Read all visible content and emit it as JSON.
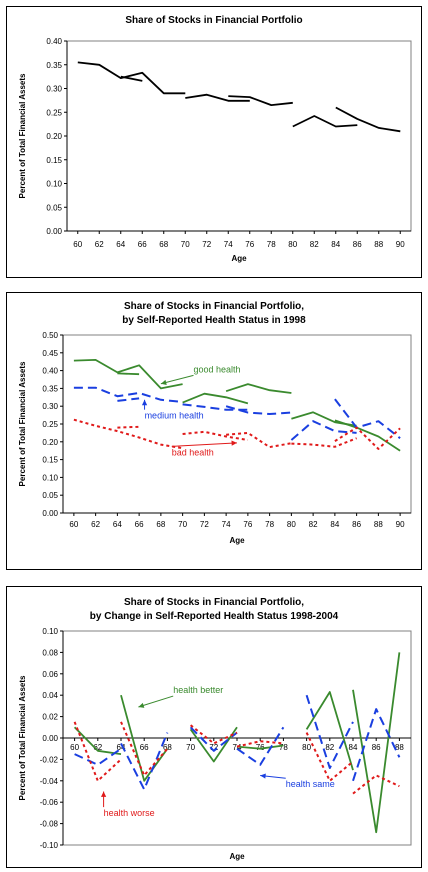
{
  "chart_data": [
    {
      "type": "line",
      "title": "Share of Stocks in Financial Portfolio",
      "subtitle": "",
      "xlabel": "Age",
      "ylabel": "Percent of Total Financial Assets",
      "xlim": [
        59,
        91
      ],
      "ylim": [
        0,
        0.4
      ],
      "xticks": [
        60,
        62,
        64,
        66,
        68,
        70,
        72,
        74,
        76,
        78,
        80,
        82,
        84,
        86,
        88,
        90
      ],
      "ytick_labels": [
        "0.00",
        "0.05",
        "0.10",
        "0.15",
        "0.20",
        "0.25",
        "0.30",
        "0.35",
        "0.40"
      ],
      "yticks": [
        0,
        0.05,
        0.1,
        0.15,
        0.2,
        0.25,
        0.3,
        0.35,
        0.4
      ],
      "grid": false,
      "series": [
        {
          "color": "#000000",
          "dash": "solid",
          "segments": [
            [
              [
                60,
                0.355
              ],
              [
                62,
                0.35
              ],
              [
                64,
                0.322
              ],
              [
                66,
                0.333
              ],
              [
                68,
                0.29
              ],
              [
                70,
                0.29
              ]
            ],
            [
              [
                64,
                0.325
              ],
              [
                66,
                0.316
              ]
            ],
            [
              [
                70,
                0.28
              ],
              [
                72,
                0.287
              ],
              [
                74,
                0.274
              ],
              [
                76,
                0.274
              ]
            ],
            [
              [
                74,
                0.284
              ],
              [
                76,
                0.282
              ],
              [
                78,
                0.265
              ],
              [
                80,
                0.27
              ]
            ],
            [
              [
                80,
                0.22
              ],
              [
                82,
                0.242
              ],
              [
                84,
                0.22
              ],
              [
                86,
                0.223
              ]
            ],
            [
              [
                84,
                0.26
              ],
              [
                86,
                0.236
              ],
              [
                88,
                0.217
              ],
              [
                90,
                0.21
              ]
            ]
          ]
        }
      ],
      "annotations": []
    },
    {
      "type": "line",
      "title": "Share of Stocks in Financial Portfolio,",
      "subtitle": "by Self-Reported Health Status in 1998",
      "xlabel": "Age",
      "ylabel": "Percent of Total Financial Assets",
      "xlim": [
        59,
        91
      ],
      "ylim": [
        0,
        0.5
      ],
      "xticks": [
        60,
        62,
        64,
        66,
        68,
        70,
        72,
        74,
        76,
        78,
        80,
        82,
        84,
        86,
        88,
        90
      ],
      "ytick_labels": [
        "0.00",
        "0.05",
        "0.10",
        "0.15",
        "0.20",
        "0.25",
        "0.30",
        "0.35",
        "0.40",
        "0.45",
        "0.50"
      ],
      "yticks": [
        0,
        0.05,
        0.1,
        0.15,
        0.2,
        0.25,
        0.3,
        0.35,
        0.4,
        0.45,
        0.5
      ],
      "grid": false,
      "series": [
        {
          "name": "good health",
          "color": "#3a8a2e",
          "dash": "solid",
          "segments": [
            [
              [
                60,
                0.428
              ],
              [
                62,
                0.43
              ],
              [
                64,
                0.395
              ],
              [
                66,
                0.415
              ],
              [
                68,
                0.35
              ],
              [
                70,
                0.362
              ]
            ],
            [
              [
                64,
                0.392
              ],
              [
                66,
                0.39
              ]
            ],
            [
              [
                70,
                0.31
              ],
              [
                72,
                0.335
              ],
              [
                74,
                0.325
              ],
              [
                76,
                0.308
              ]
            ],
            [
              [
                74,
                0.342
              ],
              [
                76,
                0.362
              ],
              [
                78,
                0.345
              ],
              [
                80,
                0.337
              ]
            ],
            [
              [
                80,
                0.265
              ],
              [
                82,
                0.283
              ],
              [
                84,
                0.255
              ],
              [
                86,
                0.245
              ]
            ],
            [
              [
                84,
                0.26
              ],
              [
                86,
                0.24
              ],
              [
                88,
                0.215
              ],
              [
                90,
                0.175
              ]
            ]
          ]
        },
        {
          "name": "medium health",
          "color": "#1a3fe0",
          "dash": "dashed",
          "segments": [
            [
              [
                60,
                0.352
              ],
              [
                62,
                0.352
              ],
              [
                64,
                0.328
              ],
              [
                66,
                0.337
              ],
              [
                68,
                0.318
              ],
              [
                70,
                0.312
              ]
            ],
            [
              [
                64,
                0.315
              ],
              [
                66,
                0.322
              ]
            ],
            [
              [
                70,
                0.305
              ],
              [
                72,
                0.298
              ],
              [
                74,
                0.29
              ],
              [
                76,
                0.29
              ]
            ],
            [
              [
                74,
                0.3
              ],
              [
                76,
                0.282
              ],
              [
                78,
                0.278
              ],
              [
                80,
                0.282
              ]
            ],
            [
              [
                80,
                0.205
              ],
              [
                82,
                0.258
              ],
              [
                84,
                0.23
              ],
              [
                86,
                0.225
              ]
            ],
            [
              [
                84,
                0.32
              ],
              [
                86,
                0.24
              ],
              [
                88,
                0.258
              ],
              [
                90,
                0.21
              ]
            ]
          ]
        },
        {
          "name": "bad health",
          "color": "#e01a1a",
          "dash": "dotted",
          "segments": [
            [
              [
                60,
                0.262
              ],
              [
                62,
                0.245
              ],
              [
                64,
                0.23
              ],
              [
                66,
                0.212
              ],
              [
                68,
                0.192
              ],
              [
                70,
                0.182
              ]
            ],
            [
              [
                64,
                0.24
              ],
              [
                66,
                0.242
              ]
            ],
            [
              [
                70,
                0.222
              ],
              [
                72,
                0.228
              ],
              [
                74,
                0.215
              ],
              [
                76,
                0.205
              ]
            ],
            [
              [
                74,
                0.22
              ],
              [
                76,
                0.225
              ],
              [
                78,
                0.185
              ],
              [
                80,
                0.196
              ]
            ],
            [
              [
                80,
                0.195
              ],
              [
                82,
                0.192
              ],
              [
                84,
                0.186
              ],
              [
                86,
                0.21
              ]
            ],
            [
              [
                84,
                0.202
              ],
              [
                86,
                0.24
              ],
              [
                88,
                0.18
              ],
              [
                90,
                0.238
              ]
            ]
          ]
        }
      ],
      "annotations": [
        {
          "text": "good health",
          "color": "#3a8a2e",
          "x": 71,
          "y": 0.395,
          "arrow_to": [
            68,
            0.363
          ]
        },
        {
          "text": "medium health",
          "color": "#1a3fe0",
          "x": 66.5,
          "y": 0.265,
          "arrow_to": [
            66.5,
            0.318
          ]
        },
        {
          "text": "bad health",
          "color": "#e01a1a",
          "x": 69,
          "y": 0.162,
          "arrow_to": [
            75,
            0.197
          ]
        }
      ]
    },
    {
      "type": "line",
      "title": "Share of Stocks in Financial Portfolio,",
      "subtitle": "by Change in Self-Reported Health Status 1998-2004",
      "xlabel": "Age",
      "ylabel": "Percent of Total Financial Assets",
      "xlim": [
        59,
        89
      ],
      "ylim": [
        -0.1,
        0.1
      ],
      "xticks": [
        60,
        62,
        64,
        66,
        68,
        70,
        72,
        74,
        76,
        78,
        80,
        82,
        84,
        86,
        88
      ],
      "ytick_labels": [
        "-0.10",
        "-0.08",
        "-0.06",
        "-0.04",
        "-0.02",
        "0.00",
        "0.02",
        "0.04",
        "0.06",
        "0.08",
        "0.10"
      ],
      "yticks": [
        -0.1,
        -0.08,
        -0.06,
        -0.04,
        -0.02,
        0,
        0.02,
        0.04,
        0.06,
        0.08,
        0.1
      ],
      "grid": false,
      "series": [
        {
          "name": "health better",
          "color": "#3a8a2e",
          "dash": "solid",
          "segments": [
            [
              [
                60,
                0.01
              ],
              [
                62,
                -0.012
              ],
              [
                64,
                -0.015
              ]
            ],
            [
              [
                64,
                0.04
              ],
              [
                66,
                -0.04
              ],
              [
                68,
                -0.01
              ]
            ],
            [
              [
                70,
                0.008
              ],
              [
                72,
                -0.022
              ],
              [
                74,
                0.01
              ]
            ],
            [
              [
                74,
                -0.008
              ],
              [
                76,
                -0.01
              ],
              [
                78,
                -0.007
              ]
            ],
            [
              [
                80,
                0.008
              ],
              [
                82,
                0.043
              ],
              [
                84,
                -0.03
              ]
            ],
            [
              [
                84,
                0.045
              ],
              [
                86,
                -0.088
              ],
              [
                88,
                0.08
              ]
            ]
          ]
        },
        {
          "name": "health same",
          "color": "#1a3fe0",
          "dash": "dashed",
          "segments": [
            [
              [
                60,
                -0.015
              ],
              [
                62,
                -0.025
              ],
              [
                64,
                -0.01
              ]
            ],
            [
              [
                64,
                -0.005
              ],
              [
                66,
                -0.048
              ],
              [
                68,
                0.005
              ]
            ],
            [
              [
                70,
                0.01
              ],
              [
                72,
                -0.012
              ],
              [
                74,
                0.005
              ]
            ],
            [
              [
                74,
                -0.01
              ],
              [
                76,
                -0.025
              ],
              [
                78,
                0.01
              ]
            ],
            [
              [
                80,
                0.04
              ],
              [
                82,
                -0.028
              ],
              [
                84,
                0.015
              ]
            ],
            [
              [
                84,
                -0.04
              ],
              [
                86,
                0.027
              ],
              [
                88,
                -0.018
              ]
            ]
          ]
        },
        {
          "name": "health worse",
          "color": "#e01a1a",
          "dash": "dotted",
          "segments": [
            [
              [
                60,
                0.015
              ],
              [
                62,
                -0.04
              ],
              [
                64,
                -0.02
              ]
            ],
            [
              [
                64,
                0.015
              ],
              [
                66,
                -0.035
              ],
              [
                68,
                -0.01
              ]
            ],
            [
              [
                70,
                0.012
              ],
              [
                72,
                -0.005
              ],
              [
                74,
                0.005
              ]
            ],
            [
              [
                74,
                -0.008
              ],
              [
                76,
                -0.003
              ],
              [
                78,
                -0.005
              ]
            ],
            [
              [
                80,
                0.005
              ],
              [
                82,
                -0.04
              ],
              [
                84,
                -0.022
              ]
            ],
            [
              [
                84,
                -0.052
              ],
              [
                86,
                -0.035
              ],
              [
                88,
                -0.045
              ]
            ]
          ]
        }
      ],
      "annotations": [
        {
          "text": "health better",
          "color": "#3a8a2e",
          "x": 68.5,
          "y": 0.042,
          "arrow_to": [
            65.5,
            0.029
          ]
        },
        {
          "text": "health same",
          "color": "#1a3fe0",
          "x": 78.2,
          "y": -0.046,
          "arrow_to": [
            76,
            -0.035
          ]
        },
        {
          "text": "health worse",
          "color": "#e01a1a",
          "x": 62.5,
          "y": -0.073,
          "arrow_to": [
            62.5,
            -0.05
          ]
        }
      ]
    }
  ]
}
